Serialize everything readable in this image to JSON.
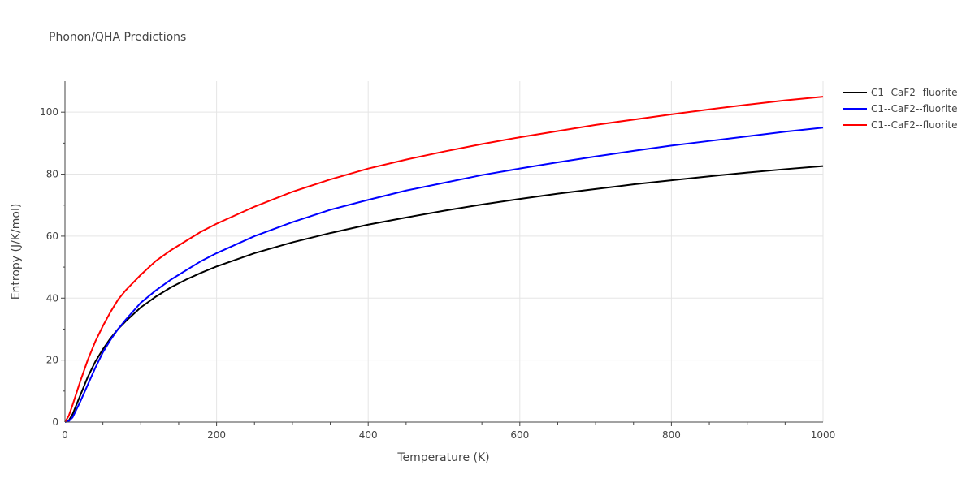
{
  "chart_data": {
    "type": "line",
    "title": "Phonon/QHA Predictions",
    "xlabel": "Temperature (K)",
    "ylabel": "Entropy (J/K/mol)",
    "xlim": [
      0,
      1000
    ],
    "ylim": [
      0,
      110
    ],
    "xticks": [
      0,
      200,
      400,
      600,
      800,
      1000
    ],
    "yticks": [
      0,
      20,
      40,
      60,
      80,
      100
    ],
    "grid": true,
    "legend_position": "top-right",
    "series": [
      {
        "name": "C1--CaF2--fluorite",
        "color": "#000000",
        "x": [
          0,
          5,
          10,
          20,
          30,
          40,
          50,
          60,
          70,
          80,
          100,
          120,
          140,
          160,
          180,
          200,
          250,
          300,
          350,
          400,
          450,
          500,
          550,
          600,
          650,
          700,
          750,
          800,
          850,
          900,
          950,
          1000
        ],
        "y": [
          0,
          0.5,
          2.5,
          8.5,
          14.5,
          19.5,
          23.5,
          27,
          30,
          32.5,
          37,
          40.5,
          43.5,
          46,
          48.2,
          50.2,
          54.5,
          58,
          61,
          63.7,
          66,
          68.2,
          70.2,
          72,
          73.7,
          75.2,
          76.7,
          78,
          79.3,
          80.5,
          81.6,
          82.6
        ]
      },
      {
        "name": "C1--CaF2--fluorite",
        "color": "#0000ff",
        "x": [
          0,
          5,
          10,
          20,
          30,
          40,
          50,
          60,
          70,
          80,
          100,
          120,
          140,
          160,
          180,
          200,
          250,
          300,
          350,
          400,
          450,
          500,
          550,
          600,
          650,
          700,
          750,
          800,
          850,
          900,
          950,
          1000
        ],
        "y": [
          0,
          0.3,
          1.5,
          6.5,
          12,
          17.5,
          22.5,
          26.5,
          30,
          33,
          38.5,
          42.5,
          46,
          49,
          52,
          54.5,
          60,
          64.5,
          68.5,
          71.7,
          74.7,
          77.2,
          79.7,
          81.8,
          83.8,
          85.7,
          87.5,
          89.2,
          90.7,
          92.2,
          93.7,
          95
        ]
      },
      {
        "name": "C1--CaF2--fluorite",
        "color": "#ff0000",
        "x": [
          0,
          5,
          10,
          20,
          30,
          40,
          50,
          60,
          70,
          80,
          100,
          120,
          140,
          160,
          180,
          200,
          250,
          300,
          350,
          400,
          450,
          500,
          550,
          600,
          650,
          700,
          750,
          800,
          850,
          900,
          950,
          1000
        ],
        "y": [
          0,
          2,
          5.5,
          13,
          20,
          26,
          31,
          35.5,
          39.5,
          42.5,
          47.5,
          52,
          55.5,
          58.5,
          61.5,
          64,
          69.5,
          74.3,
          78.3,
          81.8,
          84.7,
          87.3,
          89.7,
          91.9,
          93.9,
          95.9,
          97.6,
          99.3,
          100.9,
          102.4,
          103.8,
          105
        ]
      }
    ]
  }
}
